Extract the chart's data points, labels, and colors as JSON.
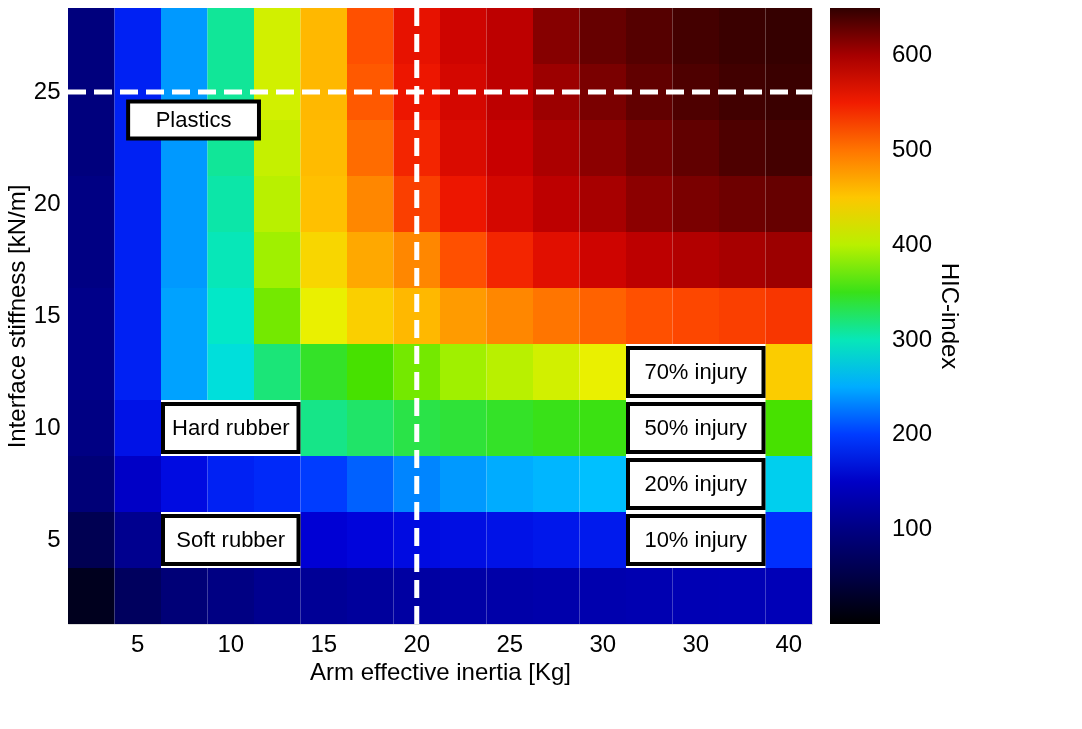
{
  "chart_data": {
    "type": "heatmap",
    "xlabel": "Arm effective inertia [Kg]",
    "ylabel": "Interface stiffness [kN/m]",
    "clabel": "HIC-index",
    "categories": [
      null,
      "5",
      null,
      "10",
      null,
      "15",
      null,
      "20",
      null,
      "25",
      null,
      "30",
      null,
      "30",
      null,
      "40"
    ],
    "y_categories": [
      null,
      "25",
      null,
      "20",
      null,
      "15",
      null,
      "10",
      null,
      "5",
      null
    ],
    "cells": [
      [
        95,
        185,
        240,
        310,
        410,
        460,
        520,
        560,
        580,
        590,
        615,
        628,
        635,
        642,
        646,
        648
      ],
      [
        95,
        185,
        240,
        310,
        410,
        460,
        515,
        555,
        575,
        590,
        605,
        620,
        630,
        638,
        643,
        646
      ],
      [
        95,
        185,
        240,
        310,
        405,
        458,
        505,
        545,
        570,
        585,
        598,
        612,
        622,
        630,
        638,
        642
      ],
      [
        100,
        185,
        240,
        305,
        400,
        455,
        490,
        530,
        555,
        575,
        590,
        600,
        612,
        620,
        625,
        628
      ],
      [
        100,
        185,
        240,
        300,
        390,
        440,
        470,
        490,
        520,
        545,
        565,
        580,
        590,
        595,
        600,
        605
      ],
      [
        105,
        185,
        245,
        295,
        375,
        420,
        445,
        460,
        478,
        490,
        500,
        510,
        520,
        525,
        530,
        535
      ],
      [
        105,
        185,
        245,
        285,
        320,
        345,
        360,
        375,
        390,
        400,
        410,
        420,
        null,
        null,
        null,
        447
      ],
      [
        100,
        175,
        null,
        null,
        null,
        315,
        325,
        335,
        340,
        345,
        350,
        352,
        null,
        null,
        null,
        360
      ],
      [
        90,
        150,
        170,
        185,
        190,
        200,
        215,
        230,
        240,
        250,
        255,
        260,
        null,
        null,
        null,
        272
      ],
      [
        60,
        110,
        null,
        null,
        null,
        160,
        165,
        170,
        172,
        175,
        178,
        180,
        null,
        null,
        null,
        194
      ],
      [
        20,
        70,
        90,
        100,
        110,
        115,
        120,
        125,
        128,
        130,
        132,
        134,
        136,
        138,
        139,
        140
      ]
    ],
    "clim": [
      0,
      650
    ],
    "cticks": [
      100,
      200,
      300,
      400,
      500,
      600
    ],
    "ref_lines": [
      {
        "axis": "x",
        "value": "20",
        "color": "#ffffff",
        "line_style": "dashed"
      },
      {
        "axis": "y",
        "value": "25",
        "color": "#ffffff",
        "line_style": "dashed"
      }
    ],
    "annotations": [
      "Plastics",
      "Hard rubber",
      "Soft rubber",
      "70% injury",
      "50% injury",
      "20% injury",
      "10% injury"
    ]
  }
}
